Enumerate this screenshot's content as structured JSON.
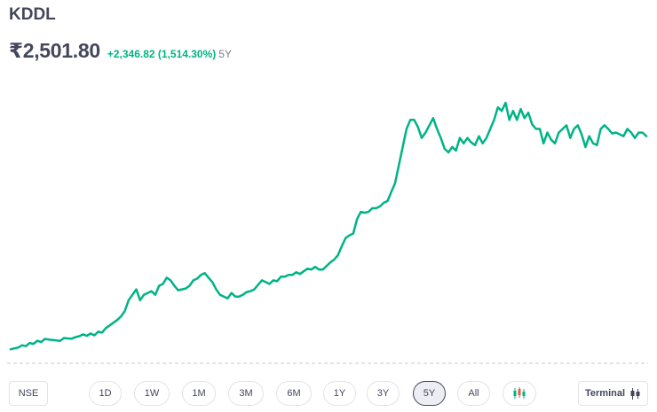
{
  "stock": {
    "symbol": "KDDL",
    "price": "₹2,501.80",
    "change": "+2,346.82 (1,514.30%)",
    "period": "5Y"
  },
  "colors": {
    "line": "#00b386",
    "baseline": "#c9c9cf",
    "text": "#44475b",
    "positive": "#00b386"
  },
  "controls": {
    "exchange": "NSE",
    "ranges": [
      "1D",
      "1W",
      "1M",
      "3M",
      "6M",
      "1Y",
      "3Y",
      "5Y",
      "All"
    ],
    "active_range": "5Y",
    "candle_icon": "candlestick-icon",
    "terminal_label": "Terminal"
  },
  "chart_data": {
    "type": "line",
    "title": "",
    "xlabel": "",
    "ylabel": "",
    "grid": false,
    "ylim": [
      0,
      2900
    ],
    "values": [
      155,
      165,
      175,
      200,
      190,
      225,
      215,
      250,
      235,
      270,
      262,
      258,
      255,
      248,
      280,
      275,
      272,
      290,
      300,
      320,
      305,
      330,
      310,
      350,
      340,
      390,
      420,
      450,
      480,
      520,
      580,
      700,
      760,
      820,
      700,
      760,
      780,
      800,
      760,
      860,
      880,
      950,
      920,
      860,
      810,
      820,
      830,
      860,
      920,
      940,
      980,
      1000,
      950,
      900,
      820,
      760,
      740,
      720,
      780,
      740,
      740,
      760,
      790,
      800,
      820,
      870,
      920,
      900,
      880,
      920,
      910,
      960,
      960,
      980,
      980,
      1010,
      990,
      1020,
      1050,
      1040,
      1070,
      1040,
      1040,
      1080,
      1120,
      1150,
      1200,
      1300,
      1390,
      1420,
      1440,
      1600,
      1680,
      1670,
      1680,
      1720,
      1720,
      1740,
      1780,
      1800,
      1900,
      2000,
      2200,
      2400,
      2600,
      2700,
      2700,
      2620,
      2500,
      2560,
      2640,
      2720,
      2600,
      2500,
      2380,
      2340,
      2400,
      2360,
      2500,
      2440,
      2500,
      2450,
      2420,
      2520,
      2440,
      2500,
      2600,
      2700,
      2840,
      2800,
      2890,
      2700,
      2800,
      2700,
      2820,
      2720,
      2780,
      2650,
      2600,
      2600,
      2440,
      2560,
      2480,
      2440,
      2560,
      2600,
      2640,
      2500,
      2600,
      2640,
      2540,
      2400,
      2520,
      2440,
      2420,
      2600,
      2640,
      2600,
      2550,
      2560,
      2540,
      2520,
      2600,
      2560,
      2500,
      2560,
      2560,
      2520
    ]
  }
}
